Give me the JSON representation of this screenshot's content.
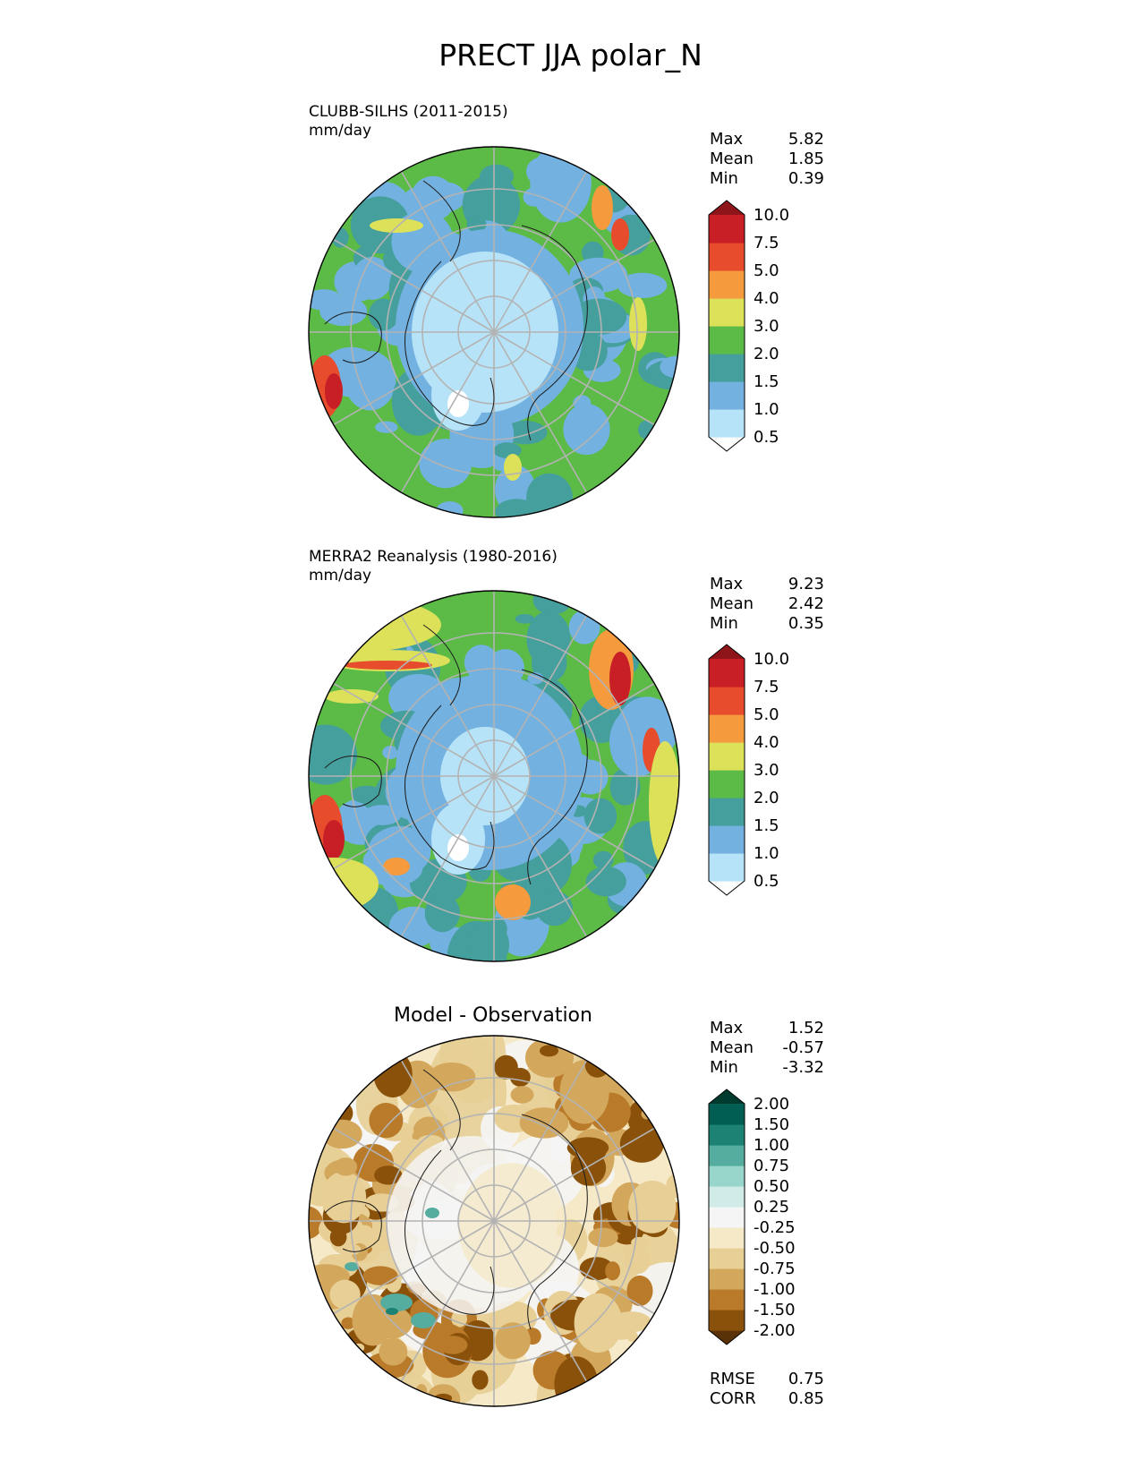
{
  "title": "PRECT JJA polar_N",
  "panels": [
    {
      "id": "test",
      "label": "CLUBB-SILHS (2011-2015)",
      "units": "mm/day",
      "stats": [
        {
          "label": "Max",
          "value": "5.82"
        },
        {
          "label": "Mean",
          "value": "1.85"
        },
        {
          "label": "Min",
          "value": "0.39"
        }
      ],
      "colorbar": {
        "levels": [
          "0.5",
          "1.0",
          "1.5",
          "2.0",
          "3.0",
          "4.0",
          "5.0",
          "7.5",
          "10.0"
        ],
        "colors": [
          "#ffffff",
          "#b7e3f8",
          "#72b1e0",
          "#459f9c",
          "#5cbb47",
          "#dde15a",
          "#f59a3d",
          "#e74c2c",
          "#c71f25",
          "#8e1519"
        ]
      },
      "ocean_color": "#5cbb47"
    },
    {
      "id": "ref",
      "label": "MERRA2 Reanalysis (1980-2016)",
      "units": "mm/day",
      "stats": [
        {
          "label": "Max",
          "value": "9.23"
        },
        {
          "label": "Mean",
          "value": "2.42"
        },
        {
          "label": "Min",
          "value": "0.35"
        }
      ],
      "colorbar": {
        "levels": [
          "0.5",
          "1.0",
          "1.5",
          "2.0",
          "3.0",
          "4.0",
          "5.0",
          "7.5",
          "10.0"
        ],
        "colors": [
          "#ffffff",
          "#b7e3f8",
          "#72b1e0",
          "#459f9c",
          "#5cbb47",
          "#dde15a",
          "#f59a3d",
          "#e74c2c",
          "#c71f25",
          "#8e1519"
        ]
      },
      "ocean_color": "#5cbb47"
    },
    {
      "id": "diff",
      "label": "Model - Observation",
      "stats": [
        {
          "label": "Max",
          "value": "1.52"
        },
        {
          "label": "Mean",
          "value": "-0.57"
        },
        {
          "label": "Min",
          "value": "-3.32"
        }
      ],
      "colorbar": {
        "levels": [
          "-2.00",
          "-1.50",
          "-1.00",
          "-0.75",
          "-0.50",
          "-0.25",
          "0.25",
          "0.50",
          "0.75",
          "1.00",
          "1.50",
          "2.00"
        ],
        "colors": [
          "#5a3207",
          "#8a510b",
          "#b97a2a",
          "#d3a75c",
          "#e7cf95",
          "#f5e9c8",
          "#f5f5f5",
          "#d1ece8",
          "#98d6cb",
          "#55ad9f",
          "#1b8274",
          "#005f52",
          "#003b30"
        ]
      },
      "extra_stats": [
        {
          "label": "RMSE",
          "value": "0.75"
        },
        {
          "label": "CORR",
          "value": "0.85"
        }
      ]
    }
  ]
}
